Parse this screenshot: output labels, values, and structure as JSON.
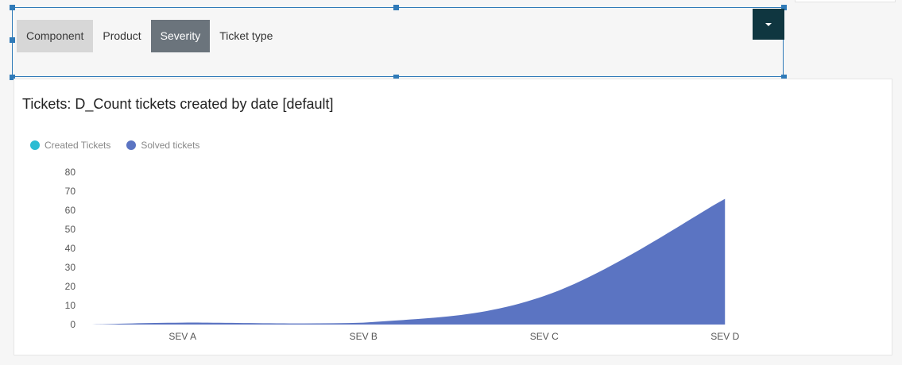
{
  "tabs": [
    {
      "label": "Component",
      "style": "light"
    },
    {
      "label": "Product",
      "style": "plain"
    },
    {
      "label": "Severity",
      "style": "dark"
    },
    {
      "label": "Ticket type",
      "style": "plain"
    }
  ],
  "dropdown": {
    "icon": "caret-down-icon"
  },
  "chart_title": "Tickets: D_Count tickets created by date [default]",
  "colors": {
    "created": "#2bbcd3",
    "solved": "#5b74c2",
    "selection": "#2f7ab8",
    "dropdown_bg": "#0f3640"
  },
  "chart_data": {
    "type": "area",
    "title": "Tickets: D_Count tickets created by date [default]",
    "xlabel": "",
    "ylabel": "",
    "categories": [
      "SEV A",
      "SEV B",
      "SEV C",
      "SEV D"
    ],
    "ylim": [
      0,
      80
    ],
    "yticks": [
      0,
      10,
      20,
      30,
      40,
      50,
      60,
      70,
      80
    ],
    "legend": {
      "placement": "top-left"
    },
    "grid": false,
    "series": [
      {
        "name": "Created Tickets",
        "color": "#2bbcd3",
        "values": [
          0,
          0,
          0,
          0
        ]
      },
      {
        "name": "Solved tickets",
        "color": "#5b74c2",
        "values": [
          1,
          1,
          15,
          66
        ]
      }
    ]
  }
}
